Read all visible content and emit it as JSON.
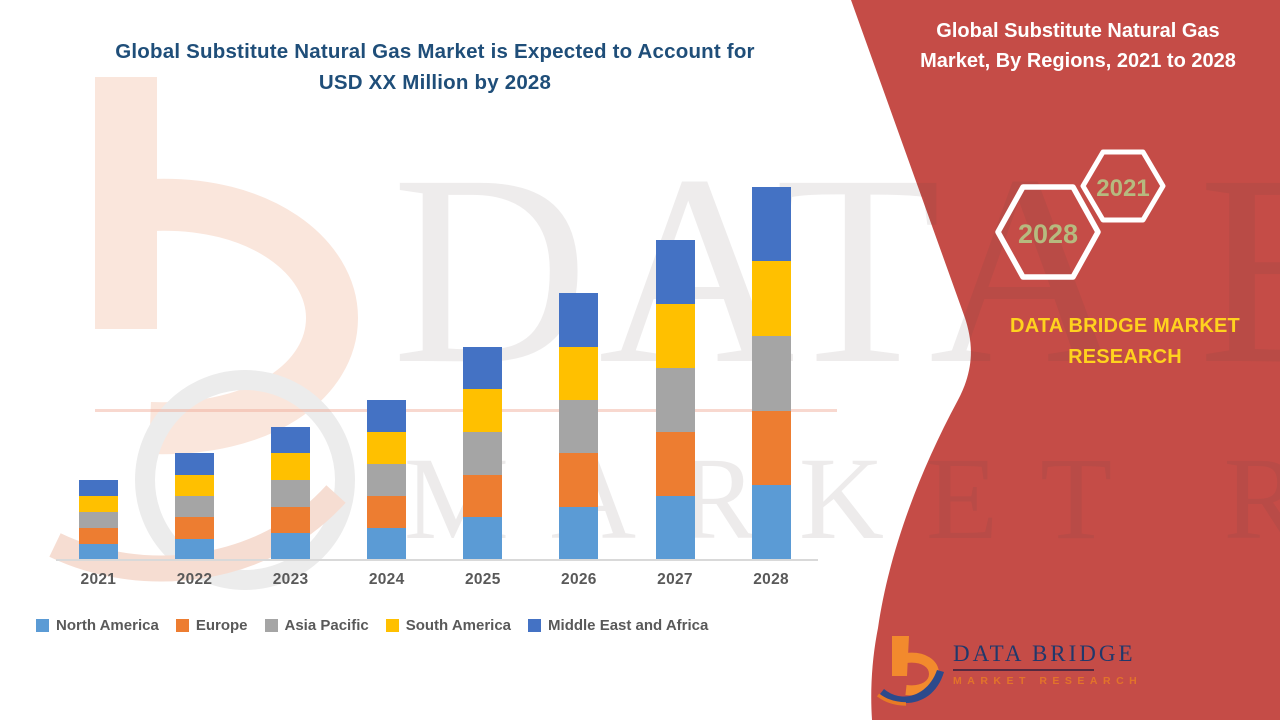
{
  "theme": {
    "panel_red": "#C54C47",
    "title_blue": "#1F4E79",
    "brand_yellow": "#FFD21E",
    "hex_year_green": "#B6BA7F",
    "axis_gray": "#D9D9D9",
    "label_gray": "#595959",
    "logo_navy": "#21386B",
    "logo_orange": "#E87A25",
    "peach": "#FAE6DC",
    "ring_gray": "#ECECEC"
  },
  "left_header": {
    "line1": "Global Substitute Natural Gas Market is Expected to Account for",
    "line2": "USD XX Million by 2028"
  },
  "right_panel": {
    "title_line1": "Global Substitute Natural Gas",
    "title_line2": "Market, By Regions, 2021 to 2028",
    "badges": [
      {
        "label": "2028"
      },
      {
        "label": "2021"
      }
    ],
    "brand_line1": "DATA BRIDGE MARKET",
    "brand_line2": "RESEARCH"
  },
  "logo": {
    "name": "DATA BRIDGE",
    "sub": "MARKET RESEARCH"
  },
  "watermark": {
    "row1": "DATA BRIDGE",
    "row2": "MARKET RESEARCH"
  },
  "chart_data": {
    "type": "bar",
    "stacked": true,
    "title": "Global Substitute Natural Gas Market, By Regions, 2021 to 2028",
    "categories": [
      "2021",
      "2022",
      "2023",
      "2024",
      "2025",
      "2026",
      "2027",
      "2028"
    ],
    "series": [
      {
        "name": "North America",
        "color": "#5B9BD5",
        "values": [
          3,
          4,
          5,
          6,
          8,
          10,
          12,
          14
        ]
      },
      {
        "name": "Europe",
        "color": "#ED7D31",
        "values": [
          3,
          4,
          5,
          6,
          8,
          10,
          12,
          14
        ]
      },
      {
        "name": "Asia Pacific",
        "color": "#A5A5A5",
        "values": [
          3,
          4,
          5,
          6,
          8,
          10,
          12,
          14
        ]
      },
      {
        "name": "South America",
        "color": "#FFC000",
        "values": [
          3,
          4,
          5,
          6,
          8,
          10,
          12,
          14
        ]
      },
      {
        "name": "Middle East and Africa",
        "color": "#4472C4",
        "values": [
          3,
          4,
          5,
          6,
          8,
          10,
          12,
          14
        ]
      }
    ],
    "stack_totals": [
      15,
      20,
      25,
      30,
      40,
      50,
      60,
      70
    ],
    "values_are_relative": true,
    "value_note": "USD XX Million (values hidden as XX placeholder)",
    "xlabel": "",
    "ylabel": "",
    "y_axis_labels": false,
    "gridlines": false,
    "legend_position": "bottom-left"
  }
}
